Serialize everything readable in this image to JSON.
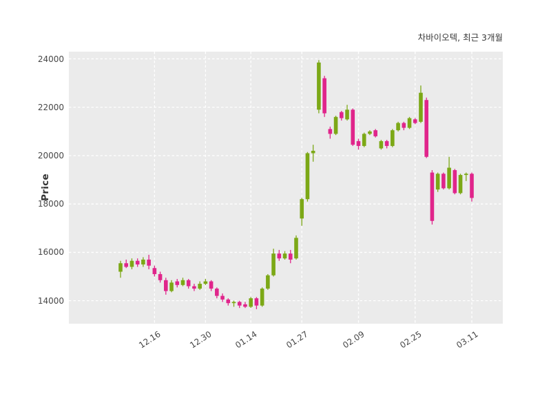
{
  "header": {
    "title": "차바이오텍, 최근 3개월"
  },
  "axes": {
    "ylabel": "Price"
  },
  "chart_data": {
    "type": "candlestick",
    "title": "차바이오텍, 최근 3개월",
    "ylabel": "Price",
    "xlabel": "",
    "grid": true,
    "plot_bg": "#ebebeb",
    "grid_color": "#ffffff",
    "up_color": "#7ca816",
    "down_color": "#e0258b",
    "ylim": [
      13050,
      24300
    ],
    "y_ticks": [
      14000,
      16000,
      18000,
      20000,
      22000,
      24000
    ],
    "x_ticks": [
      {
        "label": "12.16",
        "i": 6
      },
      {
        "label": "12.30",
        "i": 15
      },
      {
        "label": "01.14",
        "i": 23
      },
      {
        "label": "01.27",
        "i": 32
      },
      {
        "label": "02.09",
        "i": 42
      },
      {
        "label": "02.25",
        "i": 52
      },
      {
        "label": "03.11",
        "i": 62
      }
    ],
    "candles_format": [
      "open",
      "high",
      "low",
      "close"
    ],
    "candles": [
      [
        15200,
        15650,
        14950,
        15550
      ],
      [
        15550,
        15700,
        15350,
        15400
      ],
      [
        15400,
        15750,
        15300,
        15650
      ],
      [
        15650,
        15750,
        15400,
        15500
      ],
      [
        15500,
        15800,
        15400,
        15700
      ],
      [
        15700,
        15900,
        15300,
        15450
      ],
      [
        15350,
        15450,
        15000,
        15100
      ],
      [
        15100,
        15200,
        14750,
        14850
      ],
      [
        14850,
        14950,
        14250,
        14400
      ],
      [
        14400,
        14850,
        14350,
        14750
      ],
      [
        14800,
        14900,
        14550,
        14650
      ],
      [
        14650,
        14950,
        14600,
        14850
      ],
      [
        14850,
        14900,
        14500,
        14600
      ],
      [
        14600,
        14700,
        14400,
        14500
      ],
      [
        14500,
        14800,
        14450,
        14700
      ],
      [
        14700,
        14900,
        14650,
        14800
      ],
      [
        14800,
        14850,
        14400,
        14500
      ],
      [
        14500,
        14550,
        14100,
        14200
      ],
      [
        14200,
        14300,
        13950,
        14050
      ],
      [
        14050,
        14100,
        13800,
        13900
      ],
      [
        13900,
        14000,
        13750,
        13950
      ],
      [
        13950,
        14000,
        13700,
        13800
      ],
      [
        13850,
        13950,
        13700,
        13750
      ],
      [
        13750,
        14150,
        13700,
        14100
      ],
      [
        14100,
        14150,
        13650,
        13800
      ],
      [
        13800,
        14550,
        13750,
        14500
      ],
      [
        14500,
        15100,
        14450,
        15050
      ],
      [
        15050,
        16150,
        15000,
        15950
      ],
      [
        15950,
        16100,
        15650,
        15750
      ],
      [
        15750,
        16050,
        15700,
        15950
      ],
      [
        15950,
        16100,
        15550,
        15700
      ],
      [
        15750,
        16700,
        15700,
        16600
      ],
      [
        17400,
        18250,
        17100,
        18200
      ],
      [
        18200,
        20150,
        18100,
        20100
      ],
      [
        20100,
        20450,
        19750,
        20200
      ],
      [
        21900,
        23950,
        21750,
        23850
      ],
      [
        23200,
        23300,
        21600,
        21750
      ],
      [
        21100,
        21200,
        20700,
        20900
      ],
      [
        20900,
        21650,
        20850,
        21600
      ],
      [
        21800,
        21850,
        21450,
        21550
      ],
      [
        21500,
        22100,
        21450,
        21900
      ],
      [
        21900,
        21950,
        20400,
        20450
      ],
      [
        20600,
        20700,
        20250,
        20400
      ],
      [
        20400,
        20950,
        20350,
        20900
      ],
      [
        20900,
        21050,
        20850,
        21000
      ],
      [
        21050,
        21100,
        20750,
        20800
      ],
      [
        20300,
        20650,
        20250,
        20600
      ],
      [
        20600,
        20650,
        20300,
        20400
      ],
      [
        20400,
        21100,
        20350,
        21050
      ],
      [
        21050,
        21400,
        21000,
        21350
      ],
      [
        21350,
        21400,
        21050,
        21150
      ],
      [
        21150,
        21600,
        21100,
        21550
      ],
      [
        21500,
        21550,
        21300,
        21350
      ],
      [
        21400,
        22900,
        21350,
        22600
      ],
      [
        22300,
        22400,
        19900,
        19950
      ],
      [
        19300,
        19400,
        17150,
        17300
      ],
      [
        18600,
        19300,
        18500,
        19250
      ],
      [
        19250,
        19300,
        18600,
        18650
      ],
      [
        18650,
        19950,
        18600,
        19500
      ],
      [
        19400,
        19450,
        18400,
        18450
      ],
      [
        18450,
        19250,
        18400,
        19200
      ],
      [
        19200,
        19300,
        18950,
        19250
      ],
      [
        19250,
        19300,
        18100,
        18250
      ]
    ]
  }
}
